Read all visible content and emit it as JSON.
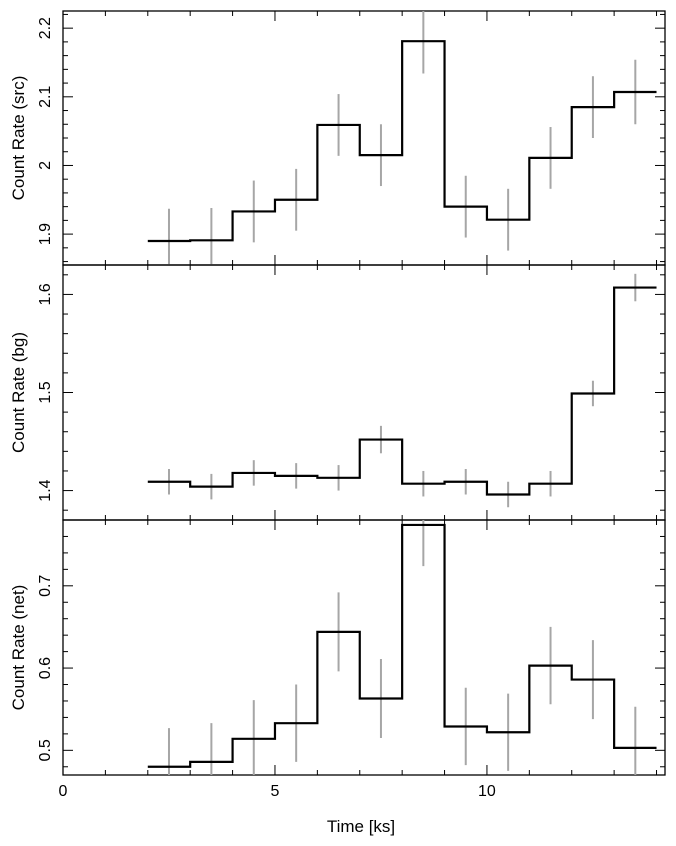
{
  "chart_data": [
    {
      "type": "line",
      "style": "step",
      "ylabel": "Count Rate (src)",
      "ylim": [
        1.855,
        2.225
      ],
      "yticks": [
        1.9,
        2,
        2.1,
        2.2
      ],
      "yticklabels": [
        "1.9",
        "2",
        "2.1",
        "2.2"
      ],
      "series": [
        {
          "bin_edges": [
            2,
            3,
            4,
            5,
            6,
            7,
            8,
            9,
            10,
            11,
            12,
            13,
            14
          ],
          "bin_centers": [
            2.5,
            3.5,
            4.5,
            5.5,
            6.5,
            7.5,
            8.5,
            9.5,
            10.5,
            11.5,
            12.5,
            13.5
          ],
          "values": [
            1.89,
            1.891,
            1.933,
            1.95,
            2.059,
            2.015,
            2.181,
            1.94,
            1.921,
            2.011,
            2.085,
            2.107
          ],
          "errors": [
            0.047,
            0.047,
            0.045,
            0.045,
            0.045,
            0.045,
            0.047,
            0.045,
            0.045,
            0.045,
            0.045,
            0.047
          ]
        }
      ]
    },
    {
      "type": "line",
      "style": "step",
      "ylabel": "Count Rate (bg)",
      "ylim": [
        1.37,
        1.63
      ],
      "yticks": [
        1.4,
        1.5,
        1.6
      ],
      "yticklabels": [
        "1.4",
        "1.5",
        "1.6"
      ],
      "series": [
        {
          "bin_edges": [
            2,
            3,
            4,
            5,
            6,
            7,
            8,
            9,
            10,
            11,
            12,
            13,
            14
          ],
          "bin_centers": [
            2.5,
            3.5,
            4.5,
            5.5,
            6.5,
            7.5,
            8.5,
            9.5,
            10.5,
            11.5,
            12.5,
            13.5
          ],
          "values": [
            1.409,
            1.404,
            1.418,
            1.415,
            1.413,
            1.452,
            1.407,
            1.409,
            1.396,
            1.407,
            1.499,
            1.607
          ],
          "errors": [
            0.013,
            0.013,
            0.013,
            0.013,
            0.013,
            0.014,
            0.013,
            0.013,
            0.013,
            0.013,
            0.013,
            0.014
          ]
        }
      ]
    },
    {
      "type": "line",
      "style": "step",
      "xlabel": "Time [ks]",
      "ylabel": "Count Rate (net)",
      "ylim": [
        0.47,
        0.78
      ],
      "yticks": [
        0.5,
        0.6,
        0.7
      ],
      "yticklabels": [
        "0.5",
        "0.6",
        "0.7"
      ],
      "xlim": [
        0,
        14.2
      ],
      "xticks": [
        0,
        5,
        10
      ],
      "xticklabels": [
        "0",
        "5",
        "10"
      ],
      "series": [
        {
          "bin_edges": [
            2,
            3,
            4,
            5,
            6,
            7,
            8,
            9,
            10,
            11,
            12,
            13,
            14
          ],
          "bin_centers": [
            2.5,
            3.5,
            4.5,
            5.5,
            6.5,
            7.5,
            8.5,
            9.5,
            10.5,
            11.5,
            12.5,
            13.5
          ],
          "values": [
            0.48,
            0.486,
            0.514,
            0.533,
            0.644,
            0.563,
            0.774,
            0.529,
            0.522,
            0.603,
            0.586,
            0.503
          ],
          "errors": [
            0.047,
            0.047,
            0.047,
            0.047,
            0.048,
            0.048,
            0.05,
            0.047,
            0.047,
            0.047,
            0.048,
            0.05
          ]
        }
      ]
    }
  ]
}
